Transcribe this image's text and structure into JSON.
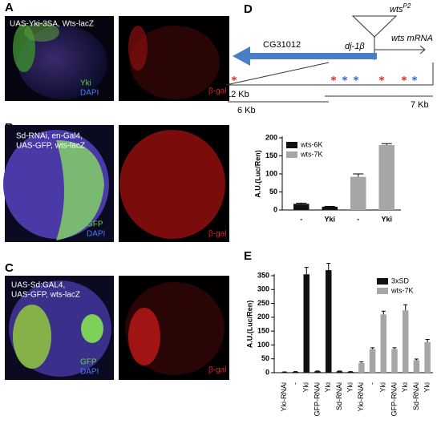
{
  "panels": {
    "A": {
      "label": "A",
      "genotype": "UAS-Yki-3SA, Wts-lacZ",
      "stain1": "Yki",
      "stain2": "DAPI",
      "stain3": "β-gal"
    },
    "B": {
      "label": "B",
      "genotype_line1": "Sd-RNAi, en-Gal4,",
      "genotype_line2": "UAS-GFP, wts-lacZ",
      "stain1": "GFP",
      "stain2": "DAPI",
      "stain3": "β-gal"
    },
    "C": {
      "label": "C",
      "genotype_line1": "UAS-Sd:GAL4,",
      "genotype_line2": "UAS-GFP, wts-lacZ",
      "stain1": "GFP",
      "stain2": "DAPI",
      "stain3": "β-gal"
    },
    "D": {
      "label": "D"
    },
    "E": {
      "label": "E"
    }
  },
  "gene_diagram": {
    "allele": "wts",
    "allele_sup": "P2",
    "mrna": "wts mRNA",
    "gene1": "CG31012",
    "gene2": "dj-1β",
    "len_total": "12 Kb",
    "len_left": "6 Kb",
    "len_right": "7 Kb"
  },
  "chart_data": [
    {
      "type": "bar",
      "ylabel": "A.U.(Luc/Ren)",
      "categories": [
        "-",
        "Yki",
        "-",
        "Yki"
      ],
      "series": [
        {
          "name": "wts-6K",
          "color": "#111111",
          "values": [
            17,
            9,
            null,
            null
          ],
          "errors": [
            2,
            1,
            null,
            null
          ]
        },
        {
          "name": "wts-7K",
          "color": "#a6a6a6",
          "values": [
            null,
            null,
            92,
            180
          ],
          "errors": [
            null,
            null,
            8,
            4
          ]
        }
      ],
      "ylim": [
        0,
        200
      ],
      "yticks": [
        0,
        50,
        100,
        150,
        200
      ],
      "legend": "upper left"
    },
    {
      "type": "bar",
      "ylabel": "A.U.(Luc/Ren)",
      "categories": [
        "Yki-RNAi",
        "-",
        "Yki",
        "GFP-RNAi",
        "Yki",
        "Sd-RNAi",
        "Yki",
        "Yki-RNAi",
        "-",
        "Yki",
        "GFP-RNAi",
        "Yki",
        "Sd-RNAi",
        "Yki"
      ],
      "series": [
        {
          "name": "3xSD",
          "color": "#111111",
          "values": [
            2,
            3,
            355,
            5,
            370,
            5,
            3,
            null,
            null,
            null,
            null,
            null,
            null,
            null
          ],
          "errors": [
            1,
            1,
            25,
            1,
            25,
            1,
            1,
            null,
            null,
            null,
            null,
            null,
            null,
            null
          ]
        },
        {
          "name": "wts-7K",
          "color": "#a6a6a6",
          "values": [
            null,
            null,
            null,
            null,
            null,
            null,
            null,
            35,
            85,
            210,
            85,
            225,
            45,
            110
          ],
          "errors": [
            null,
            null,
            null,
            null,
            null,
            null,
            null,
            4,
            5,
            12,
            5,
            20,
            4,
            10
          ]
        }
      ],
      "ylim": [
        0,
        350
      ],
      "yticks": [
        0,
        50,
        100,
        150,
        200,
        250,
        300,
        350
      ],
      "legend": "upper right"
    }
  ]
}
